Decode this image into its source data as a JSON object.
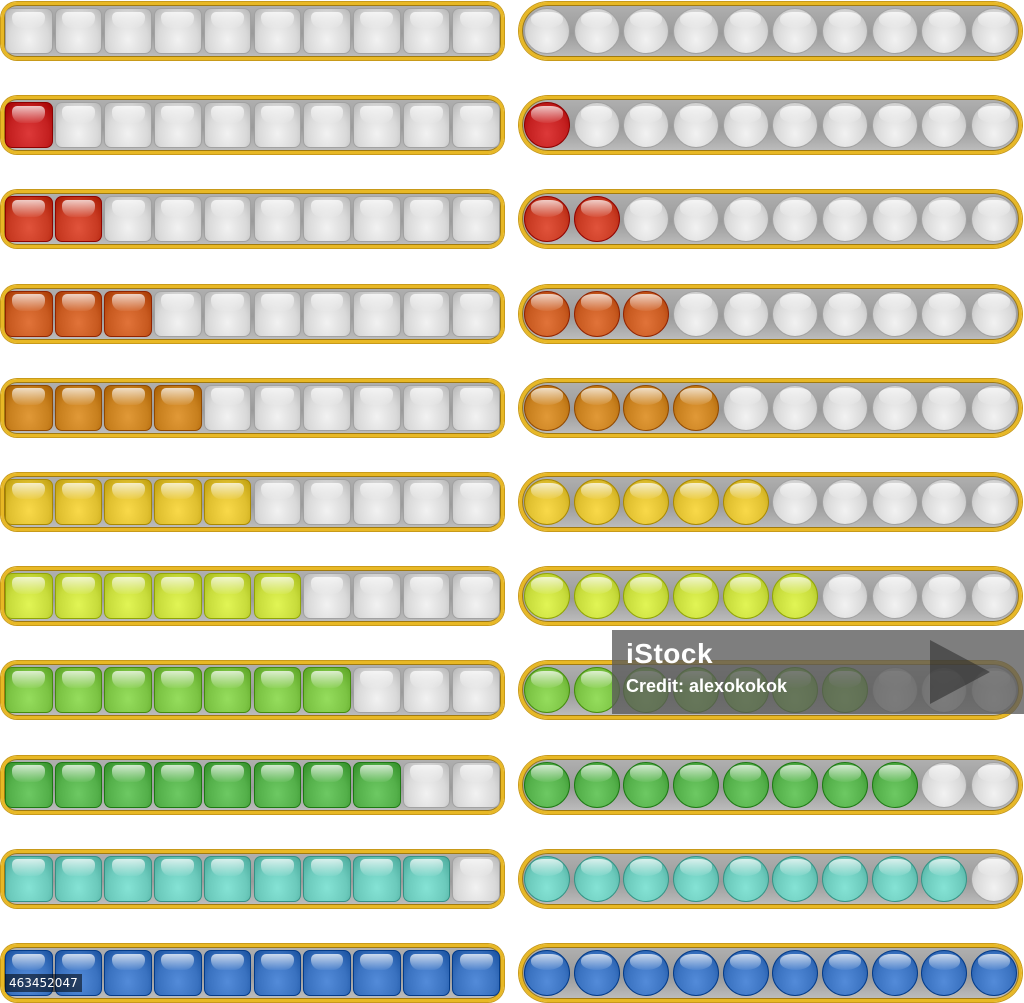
{
  "watermark": {
    "brand": "iStock",
    "credit": "Credit: alexokokok",
    "stock_id": "463452047"
  },
  "colors": {
    "frame": "#e8b825",
    "track": "#a6a6a6",
    "empty": "#d9d9d9",
    "levels": [
      "#d9d9d9",
      "#c42020",
      "#c83a22",
      "#c85a20",
      "#c8801e",
      "#e0c030",
      "#c8dc3c",
      "#7cc444",
      "#54b04a",
      "#6ccabc",
      "#3a72c0"
    ]
  },
  "progress_bars": {
    "segments": 10,
    "square_bars": [
      {
        "filled": 0
      },
      {
        "filled": 1
      },
      {
        "filled": 2
      },
      {
        "filled": 3
      },
      {
        "filled": 4
      },
      {
        "filled": 5
      },
      {
        "filled": 6
      },
      {
        "filled": 7
      },
      {
        "filled": 8
      },
      {
        "filled": 9
      },
      {
        "filled": 10
      }
    ],
    "round_bars": [
      {
        "filled": 0
      },
      {
        "filled": 1
      },
      {
        "filled": 2
      },
      {
        "filled": 3
      },
      {
        "filled": 4
      },
      {
        "filled": 5
      },
      {
        "filled": 6
      },
      {
        "filled": 7
      },
      {
        "filled": 8
      },
      {
        "filled": 9
      },
      {
        "filled": 10
      }
    ]
  }
}
